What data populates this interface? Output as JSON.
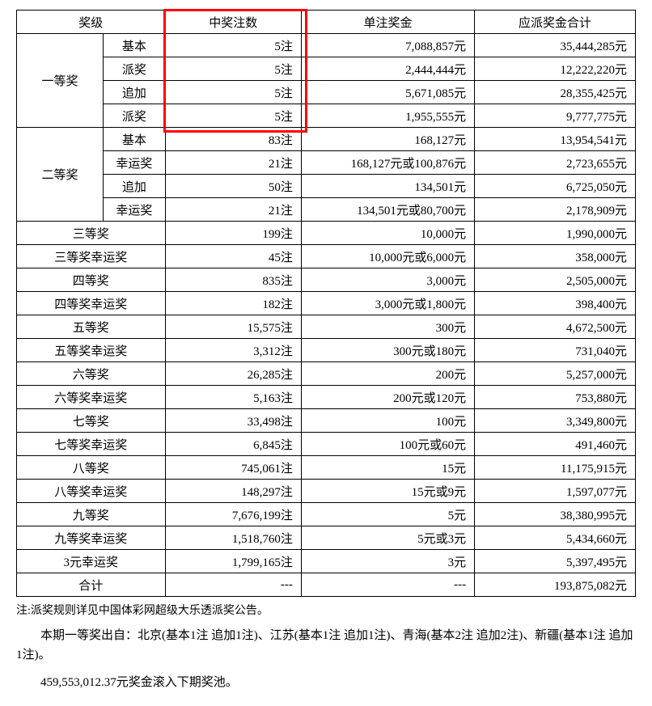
{
  "columns": {
    "level": "奖级",
    "count": "中奖注数",
    "prize": "单注奖金",
    "total": "应派奖金合计"
  },
  "col_widths_pct": [
    14,
    10,
    22,
    28,
    26
  ],
  "highlight": {
    "left_pct": 24.0,
    "width_pct": 22.5,
    "top_row": 0,
    "row_count": 5,
    "color": "#ff0000"
  },
  "groups": [
    {
      "level": "一等奖",
      "subs": [
        {
          "sub": "基本",
          "count": "5注",
          "prize": "7,088,857元",
          "total": "35,444,285元"
        },
        {
          "sub": "派奖",
          "count": "5注",
          "prize": "2,444,444元",
          "total": "12,222,220元"
        },
        {
          "sub": "追加",
          "count": "5注",
          "prize": "5,671,085元",
          "total": "28,355,425元"
        },
        {
          "sub": "派奖",
          "count": "5注",
          "prize": "1,955,555元",
          "total": "9,777,775元"
        }
      ]
    },
    {
      "level": "二等奖",
      "subs": [
        {
          "sub": "基本",
          "count": "83注",
          "prize": "168,127元",
          "total": "13,954,541元"
        },
        {
          "sub": "幸运奖",
          "count": "21注",
          "prize": "168,127元或100,876元",
          "total": "2,723,655元"
        },
        {
          "sub": "追加",
          "count": "50注",
          "prize": "134,501元",
          "total": "6,725,050元"
        },
        {
          "sub": "幸运奖",
          "count": "21注",
          "prize": "134,501元或80,700元",
          "total": "2,178,909元"
        }
      ]
    }
  ],
  "rows": [
    {
      "level": "三等奖",
      "count": "199注",
      "prize": "10,000元",
      "total": "1,990,000元"
    },
    {
      "level": "三等奖幸运奖",
      "count": "45注",
      "prize": "10,000元或6,000元",
      "total": "358,000元"
    },
    {
      "level": "四等奖",
      "count": "835注",
      "prize": "3,000元",
      "total": "2,505,000元"
    },
    {
      "level": "四等奖幸运奖",
      "count": "182注",
      "prize": "3,000元或1,800元",
      "total": "398,400元"
    },
    {
      "level": "五等奖",
      "count": "15,575注",
      "prize": "300元",
      "total": "4,672,500元"
    },
    {
      "level": "五等奖幸运奖",
      "count": "3,312注",
      "prize": "300元或180元",
      "total": "731,040元"
    },
    {
      "level": "六等奖",
      "count": "26,285注",
      "prize": "200元",
      "total": "5,257,000元"
    },
    {
      "level": "六等奖幸运奖",
      "count": "5,163注",
      "prize": "200元或120元",
      "total": "753,880元"
    },
    {
      "level": "七等奖",
      "count": "33,498注",
      "prize": "100元",
      "total": "3,349,800元"
    },
    {
      "level": "七等奖幸运奖",
      "count": "6,845注",
      "prize": "100元或60元",
      "total": "491,460元"
    },
    {
      "level": "八等奖",
      "count": "745,061注",
      "prize": "15元",
      "total": "11,175,915元"
    },
    {
      "level": "八等奖幸运奖",
      "count": "148,297注",
      "prize": "15元或9元",
      "total": "1,597,077元"
    },
    {
      "level": "九等奖",
      "count": "7,676,199注",
      "prize": "5元",
      "total": "38,380,995元"
    },
    {
      "level": "九等奖幸运奖",
      "count": "1,518,760注",
      "prize": "5元或3元",
      "total": "5,434,660元"
    },
    {
      "level": "3元幸运奖",
      "count": "1,799,165注",
      "prize": "3元",
      "total": "5,397,495元"
    }
  ],
  "sum_row": {
    "level": "合计",
    "count": "---",
    "prize": "---",
    "total": "193,875,082元"
  },
  "note": "注:派奖规则详见中国体彩网超级大乐透派奖公告。",
  "winners": "本期一等奖出自：北京(基本1注 追加1注)、江苏(基本1注 追加1注)、青海(基本2注 追加2注)、新疆(基本1注 追加1注)。",
  "rollover": "459,553,012.37元奖金滚入下期奖池。",
  "font_family": "SimSun",
  "background_color": "#ffffff",
  "text_color": "#000000",
  "border_color": "#000000"
}
